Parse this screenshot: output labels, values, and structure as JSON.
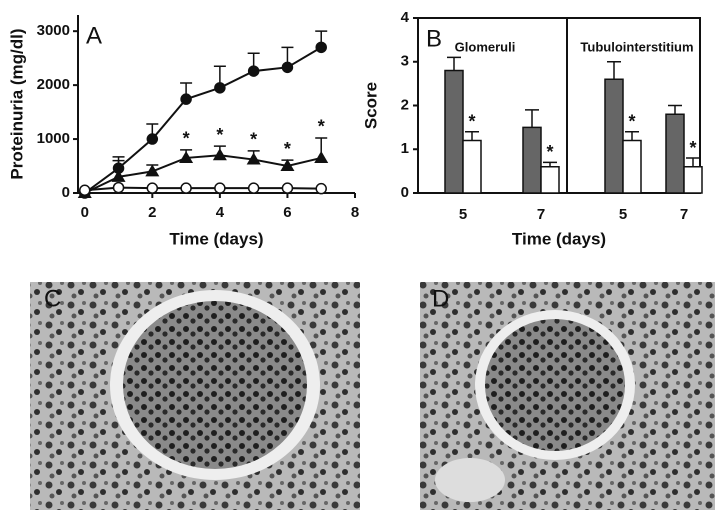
{
  "chart_data": [
    {
      "type": "line",
      "panel": "A",
      "x_label": "Time (days)",
      "y_label": "Proteinuria (mg/dl)",
      "x": [
        0,
        1,
        2,
        3,
        4,
        5,
        6,
        7
      ],
      "xlim": [
        -0.2,
        8
      ],
      "xticks": [
        0,
        2,
        4,
        6,
        8
      ],
      "ylim": [
        0,
        3300
      ],
      "yticks": [
        0,
        1000,
        2000,
        3000
      ],
      "series": [
        {
          "marker": "circle",
          "color": "#111111",
          "values": [
            0,
            460,
            1000,
            1740,
            1950,
            2260,
            2330,
            2700
          ],
          "errors": [
            0,
            210,
            280,
            300,
            400,
            330,
            370,
            300
          ]
        },
        {
          "marker": "triangle",
          "color": "#111111",
          "values": [
            0,
            300,
            400,
            650,
            700,
            620,
            500,
            650
          ],
          "errors": [
            0,
            300,
            120,
            150,
            170,
            160,
            110,
            370
          ]
        },
        {
          "marker": "open-circle",
          "color": "#111111",
          "values": [
            50,
            100,
            90,
            90,
            90,
            90,
            90,
            80
          ]
        }
      ],
      "annotations": [
        {
          "series": 1,
          "x": 3,
          "text": "*"
        },
        {
          "series": 1,
          "x": 4,
          "text": "*"
        },
        {
          "series": 1,
          "x": 5,
          "text": "*"
        },
        {
          "series": 1,
          "x": 6,
          "text": "*"
        },
        {
          "series": 1,
          "x": 7,
          "text": "*"
        }
      ]
    },
    {
      "type": "bar",
      "panel": "B",
      "x_label": "Time (days)",
      "y_label": "Score",
      "groups": [
        {
          "label": "Glomeruli"
        },
        {
          "label": "Tubulointerstitium"
        }
      ],
      "categories": [
        "5",
        "7",
        "5",
        "7"
      ],
      "ylim": [
        0,
        4
      ],
      "yticks": [
        0,
        1,
        2,
        3,
        4
      ],
      "series": [
        {
          "color": "#666666",
          "values": [
            2.8,
            1.5,
            2.6,
            1.8
          ],
          "errors": [
            0.3,
            0.4,
            0.4,
            0.2
          ]
        },
        {
          "color": "#ffffff",
          "values": [
            1.2,
            0.6,
            1.2,
            0.6
          ],
          "errors": [
            0.2,
            0.1,
            0.2,
            0.2
          ]
        }
      ],
      "annotations": [
        {
          "series": 1,
          "index": 0,
          "text": "*"
        },
        {
          "series": 1,
          "index": 1,
          "text": "*"
        },
        {
          "series": 1,
          "index": 2,
          "text": "*"
        },
        {
          "series": 1,
          "index": 3,
          "text": "*"
        }
      ]
    }
  ],
  "micrographs": [
    {
      "label": "C"
    },
    {
      "label": "D"
    }
  ]
}
